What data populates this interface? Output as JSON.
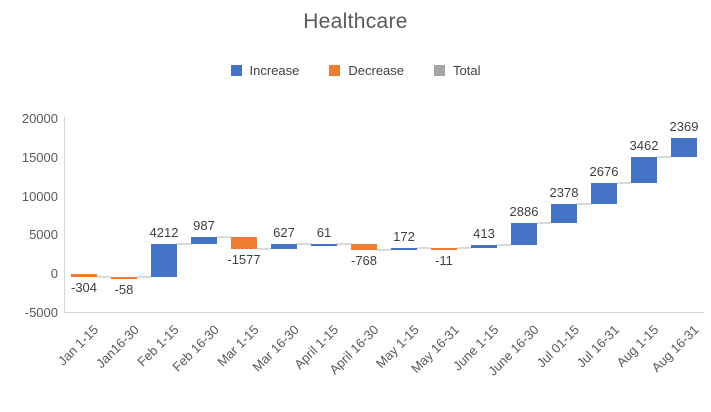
{
  "title": "Healthcare",
  "legend": {
    "items": [
      {
        "label": "Increase",
        "color": "#4472C4"
      },
      {
        "label": "Decrease",
        "color": "#ED7D31"
      },
      {
        "label": "Total",
        "color": "#A5A5A5"
      }
    ]
  },
  "chart_data": {
    "type": "bar",
    "subtype": "waterfall",
    "title": "Healthcare",
    "categories": [
      "Jan 1-15",
      "Jan16-30",
      "Feb 1-15",
      "Feb 16-30",
      "Mar 1-15",
      "Mar 16-30",
      "April 1-15",
      "April 16-30",
      "May 1-15",
      "May 16-31",
      "June 1-15",
      "June 16-30",
      "Jul 01-15",
      "Jul 16-31",
      "Aug 1-15",
      "Aug 16-31"
    ],
    "values": [
      -304,
      -58,
      4212,
      987,
      -1577,
      627,
      61,
      -768,
      172,
      -11,
      413,
      2886,
      2378,
      2676,
      3462,
      2369
    ],
    "cumulative": [
      -304,
      -362,
      3850,
      4837,
      3260,
      3887,
      3948,
      3180,
      3352,
      3341,
      3754,
      6640,
      9018,
      11694,
      15156,
      17525
    ],
    "xlabel": "",
    "ylabel": "",
    "ylim": [
      -5000,
      20000
    ],
    "yticks": [
      20000,
      15000,
      10000,
      5000,
      0,
      -5000
    ],
    "grid": false,
    "legend_position": "top",
    "legend_entries": [
      "Increase",
      "Decrease",
      "Total"
    ],
    "colors": {
      "increase": "#4472C4",
      "decrease": "#ED7D31",
      "total": "#A5A5A5",
      "connector": "#D9D9D9",
      "axis_line": "#D6D6D6",
      "axis_text": "#595959",
      "label_text": "#3F3F3F",
      "title_text": "#595959"
    }
  }
}
